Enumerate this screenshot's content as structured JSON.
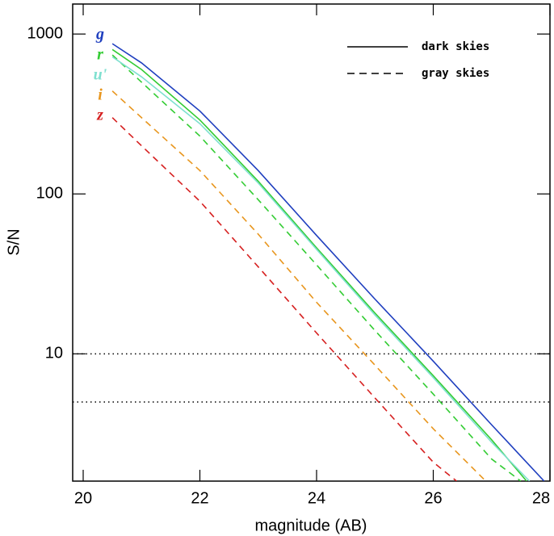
{
  "chart_data": {
    "type": "line",
    "xlabel": "magnitude (AB)",
    "ylabel": "S/N",
    "xlim": [
      19.82,
      28.0
    ],
    "xticks": [
      20,
      22,
      24,
      26,
      28
    ],
    "ylim": [
      1.6,
      1540
    ],
    "yticks": [
      10,
      100,
      1000
    ],
    "log_y": true,
    "hlines": [
      10,
      5
    ],
    "legend": [
      {
        "label": "dark skies",
        "dashed": false
      },
      {
        "label": "gray skies",
        "dashed": true
      }
    ],
    "series": [
      {
        "name": "g",
        "color": "#1f3fbf",
        "dashed": false,
        "x": [
          20.5,
          21,
          22,
          23,
          24,
          25,
          26,
          27,
          27.9
        ],
        "values": [
          870,
          660,
          330,
          140,
          55,
          22,
          9,
          3.6,
          1.6
        ]
      },
      {
        "name": "r",
        "color": "#33cc33",
        "dashed": false,
        "x": [
          20.5,
          21,
          22,
          23,
          24,
          25,
          26,
          27,
          27.6
        ],
        "values": [
          800,
          600,
          290,
          120,
          46,
          18,
          7.3,
          2.9,
          1.6
        ]
      },
      {
        "name": "u'",
        "color": "#7fe0d0",
        "dashed": false,
        "x": [
          20.5,
          21,
          22,
          23,
          24,
          25,
          26,
          27,
          27.65
        ],
        "values": [
          720,
          540,
          275,
          117,
          45,
          17.5,
          7.1,
          2.8,
          1.6
        ]
      },
      {
        "name": "i",
        "color": "#e8961e",
        "dashed": true,
        "x": [
          20.5,
          21,
          22,
          23,
          24,
          25,
          26,
          26.9
        ],
        "values": [
          440,
          300,
          140,
          56,
          21,
          8.5,
          3.4,
          1.6
        ]
      },
      {
        "name": "z",
        "color": "#d62020",
        "dashed": true,
        "x": [
          20.5,
          21,
          22,
          23,
          24,
          25,
          26,
          26.4
        ],
        "values": [
          300,
          200,
          90,
          35,
          13.5,
          5.3,
          2.1,
          1.6
        ]
      }
    ],
    "extra_series": [
      {
        "color": "#33cc33",
        "dashed": true,
        "x": [
          20.5,
          21,
          22,
          23,
          24,
          25,
          26,
          27,
          27.5
        ],
        "values": [
          740,
          500,
          230,
          92,
          36,
          14,
          5.6,
          2.2,
          1.6
        ]
      }
    ]
  }
}
